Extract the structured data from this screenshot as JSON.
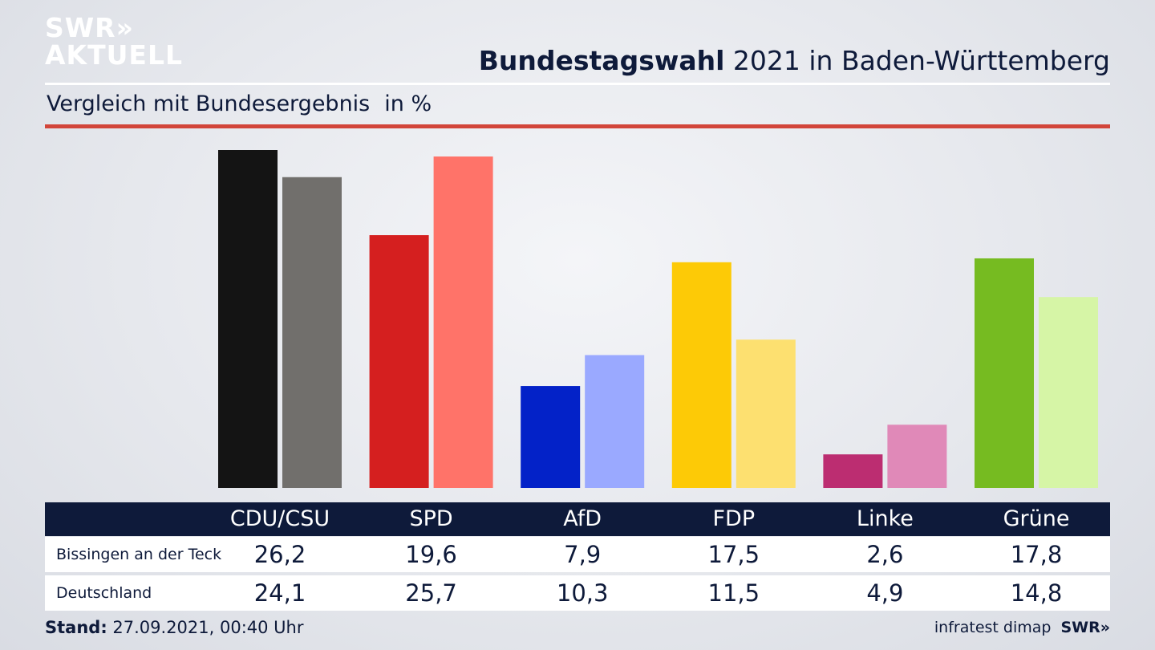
{
  "header": {
    "logo_line1": "SWR»",
    "logo_line2": "AKTUELL",
    "title_bold": "Bundestagswahl",
    "title_rest": " 2021 in Baden-Württemberg",
    "subtitle": "Vergleich mit Bundesergebnis",
    "unit": "in %"
  },
  "chart_data": {
    "type": "bar",
    "categories": [
      "CDU/CSU",
      "SPD",
      "AfD",
      "FDP",
      "Linke",
      "Grüne"
    ],
    "series": [
      {
        "name": "Bissingen an der Teck",
        "values": [
          26.2,
          19.6,
          7.9,
          17.5,
          2.6,
          17.8
        ],
        "colors": [
          "#141414",
          "#d51f1f",
          "#0322c8",
          "#fdca06",
          "#bc2d71",
          "#76bb21"
        ]
      },
      {
        "name": "Deutschland",
        "values": [
          24.1,
          25.7,
          10.3,
          11.5,
          4.9,
          14.8
        ],
        "colors": [
          "#716f6c",
          "#ff7369",
          "#9aa9ff",
          "#fde070",
          "#e089b8",
          "#d6f5a6"
        ]
      }
    ],
    "value_labels": [
      [
        "26,2",
        "19,6",
        "7,9",
        "17,5",
        "2,6",
        "17,8"
      ],
      [
        "24,1",
        "25,7",
        "10,3",
        "11,5",
        "4,9",
        "14,8"
      ]
    ],
    "ylim": [
      0,
      26.2
    ],
    "grid": false,
    "legend": "table-bottom"
  },
  "footer": {
    "stand_label": "Stand:",
    "stand_value": " 27.09.2021, 00:40 Uhr",
    "source": "infratest dimap",
    "source_brand": "SWR»"
  }
}
